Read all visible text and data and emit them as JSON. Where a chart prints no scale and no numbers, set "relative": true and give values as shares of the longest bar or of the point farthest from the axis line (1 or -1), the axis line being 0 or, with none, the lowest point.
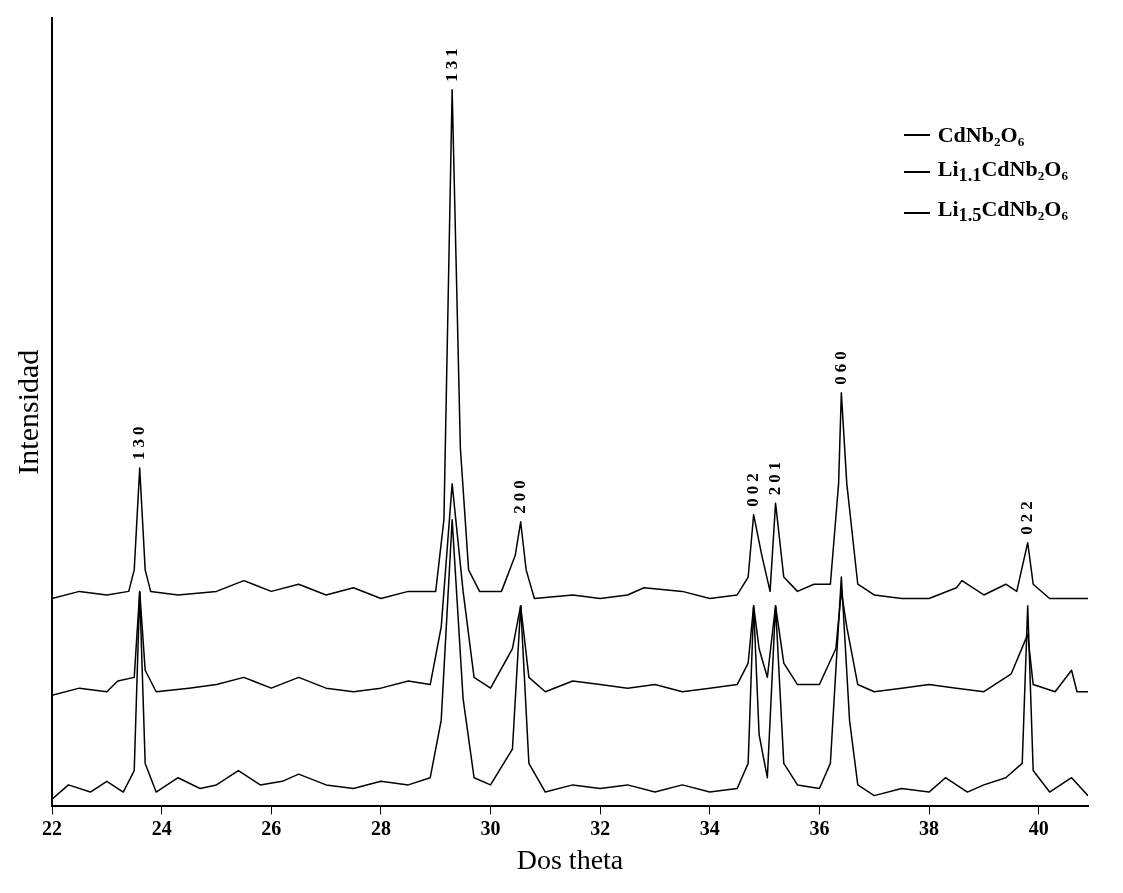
{
  "chart_data": {
    "type": "line",
    "relative": true,
    "xlabel": "Dos theta",
    "ylabel": "Intensidad",
    "xlim": [
      22,
      40.9
    ],
    "xticks": [
      22,
      24,
      26,
      28,
      30,
      32,
      34,
      36,
      38,
      40
    ],
    "grid": false,
    "legend": "top right",
    "marker": "none",
    "line_style": "solid",
    "annotations": [
      {
        "text": "130",
        "x": 23.6,
        "y": 0.472
      },
      {
        "text": "131",
        "x": 29.3,
        "y": 1.0
      },
      {
        "text": "200",
        "x": 30.55,
        "y": 0.397
      },
      {
        "text": "002",
        "x": 34.8,
        "y": 0.407
      },
      {
        "text": "201",
        "x": 35.2,
        "y": 0.423
      },
      {
        "text": "060",
        "x": 36.4,
        "y": 0.577
      },
      {
        "text": "022",
        "x": 39.8,
        "y": 0.368
      }
    ],
    "series": [
      {
        "name": "CdNb₂O₆",
        "color": "#000000",
        "x": [
          22.0,
          22.5,
          23.0,
          23.4,
          23.5,
          23.6,
          23.7,
          23.8,
          24.3,
          25.0,
          25.5,
          26.0,
          26.5,
          27.0,
          27.5,
          28.0,
          28.5,
          29.0,
          29.15,
          29.3,
          29.45,
          29.6,
          29.8,
          30.2,
          30.45,
          30.55,
          30.65,
          30.8,
          31.5,
          32.0,
          32.5,
          32.8,
          33.5,
          34.0,
          34.5,
          34.7,
          34.8,
          34.95,
          35.1,
          35.2,
          35.35,
          35.6,
          35.9,
          36.2,
          36.35,
          36.4,
          36.5,
          36.7,
          37.0,
          37.5,
          38.0,
          38.5,
          38.6,
          39.0,
          39.4,
          39.6,
          39.8,
          39.9,
          40.2,
          40.9
        ],
        "values": [
          0.29,
          0.3,
          0.295,
          0.3,
          0.33,
          0.472,
          0.33,
          0.3,
          0.295,
          0.3,
          0.315,
          0.3,
          0.31,
          0.295,
          0.305,
          0.29,
          0.3,
          0.3,
          0.4,
          1.0,
          0.5,
          0.33,
          0.3,
          0.3,
          0.35,
          0.397,
          0.33,
          0.29,
          0.295,
          0.29,
          0.295,
          0.305,
          0.3,
          0.29,
          0.295,
          0.32,
          0.407,
          0.35,
          0.3,
          0.423,
          0.32,
          0.3,
          0.31,
          0.31,
          0.45,
          0.577,
          0.45,
          0.31,
          0.295,
          0.29,
          0.29,
          0.305,
          0.315,
          0.295,
          0.31,
          0.3,
          0.368,
          0.31,
          0.29,
          0.29
        ]
      },
      {
        "name": "Li$_{1.1}$CdNb₂O₆",
        "color": "#000000",
        "x": [
          22.0,
          22.5,
          23.0,
          23.2,
          23.5,
          23.6,
          23.7,
          23.9,
          24.5,
          25.0,
          25.5,
          26.0,
          26.5,
          27.0,
          27.5,
          28.0,
          28.5,
          28.9,
          29.1,
          29.3,
          29.5,
          29.7,
          30.0,
          30.4,
          30.55,
          30.7,
          31.0,
          31.5,
          32.0,
          32.5,
          33.0,
          33.5,
          34.0,
          34.5,
          34.7,
          34.8,
          34.9,
          35.05,
          35.2,
          35.35,
          35.6,
          36.0,
          36.3,
          36.4,
          36.5,
          36.7,
          37.0,
          37.5,
          38.0,
          38.5,
          39.0,
          39.5,
          39.8,
          39.9,
          40.3,
          40.6,
          40.7,
          40.9
        ],
        "values": [
          0.155,
          0.165,
          0.16,
          0.175,
          0.18,
          0.3,
          0.19,
          0.16,
          0.165,
          0.17,
          0.18,
          0.165,
          0.18,
          0.165,
          0.16,
          0.165,
          0.175,
          0.17,
          0.25,
          0.45,
          0.3,
          0.18,
          0.165,
          0.22,
          0.28,
          0.18,
          0.16,
          0.175,
          0.17,
          0.165,
          0.17,
          0.16,
          0.165,
          0.17,
          0.2,
          0.28,
          0.22,
          0.18,
          0.28,
          0.2,
          0.17,
          0.17,
          0.22,
          0.3,
          0.25,
          0.17,
          0.16,
          0.165,
          0.17,
          0.165,
          0.16,
          0.185,
          0.24,
          0.17,
          0.16,
          0.19,
          0.16,
          0.16
        ]
      },
      {
        "name": "Li$_{1.5}$CdNb₂O₆",
        "color": "#000000",
        "x": [
          22.0,
          22.3,
          22.7,
          23.0,
          23.3,
          23.5,
          23.6,
          23.7,
          23.9,
          24.3,
          24.7,
          25.0,
          25.4,
          25.8,
          26.2,
          26.5,
          27.0,
          27.5,
          28.0,
          28.5,
          28.9,
          29.1,
          29.3,
          29.5,
          29.7,
          30.0,
          30.4,
          30.55,
          30.7,
          31.0,
          31.5,
          32.0,
          32.5,
          33.0,
          33.5,
          34.0,
          34.5,
          34.7,
          34.8,
          34.9,
          35.05,
          35.2,
          35.35,
          35.6,
          36.0,
          36.2,
          36.4,
          36.55,
          36.7,
          37.0,
          37.5,
          38.0,
          38.3,
          38.7,
          39.0,
          39.4,
          39.7,
          39.8,
          39.9,
          40.2,
          40.6,
          40.9
        ],
        "values": [
          0.01,
          0.03,
          0.02,
          0.035,
          0.02,
          0.05,
          0.3,
          0.06,
          0.02,
          0.04,
          0.025,
          0.03,
          0.05,
          0.03,
          0.035,
          0.045,
          0.03,
          0.025,
          0.035,
          0.03,
          0.04,
          0.12,
          0.4,
          0.15,
          0.04,
          0.03,
          0.08,
          0.28,
          0.06,
          0.02,
          0.03,
          0.025,
          0.03,
          0.02,
          0.03,
          0.02,
          0.025,
          0.06,
          0.28,
          0.1,
          0.04,
          0.28,
          0.06,
          0.03,
          0.025,
          0.06,
          0.32,
          0.12,
          0.03,
          0.015,
          0.025,
          0.02,
          0.04,
          0.02,
          0.03,
          0.04,
          0.06,
          0.28,
          0.05,
          0.02,
          0.04,
          0.015
        ]
      }
    ]
  }
}
